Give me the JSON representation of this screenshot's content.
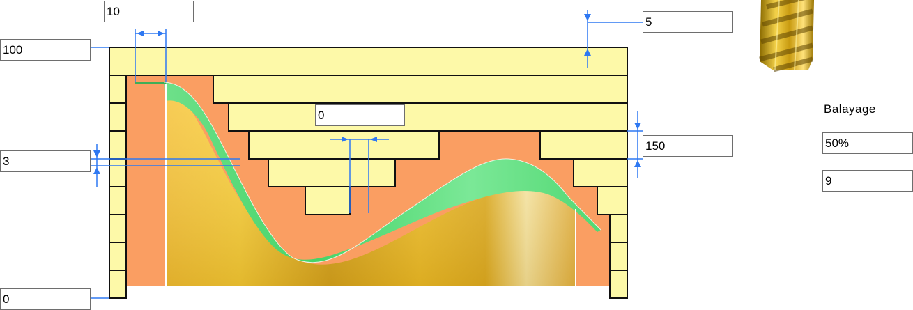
{
  "fields": {
    "top_offset": "10",
    "depth_step": "5",
    "top_level": "100",
    "center_offset": "0",
    "step_height": "150",
    "left_step": "3",
    "bottom_level": "0"
  },
  "side_panel": {
    "title": "Balayage",
    "sweep_percent": "50%",
    "sweep_count": "9"
  },
  "colors": {
    "stock": "#fdf9a8",
    "remaining": "#fa9e62",
    "surface_gold": "#f2c22c",
    "surface_green": "#5cde78",
    "dimension_blue": "#2e78f2",
    "outline": "#111111"
  },
  "icons": {
    "tool": "end-mill-icon"
  }
}
